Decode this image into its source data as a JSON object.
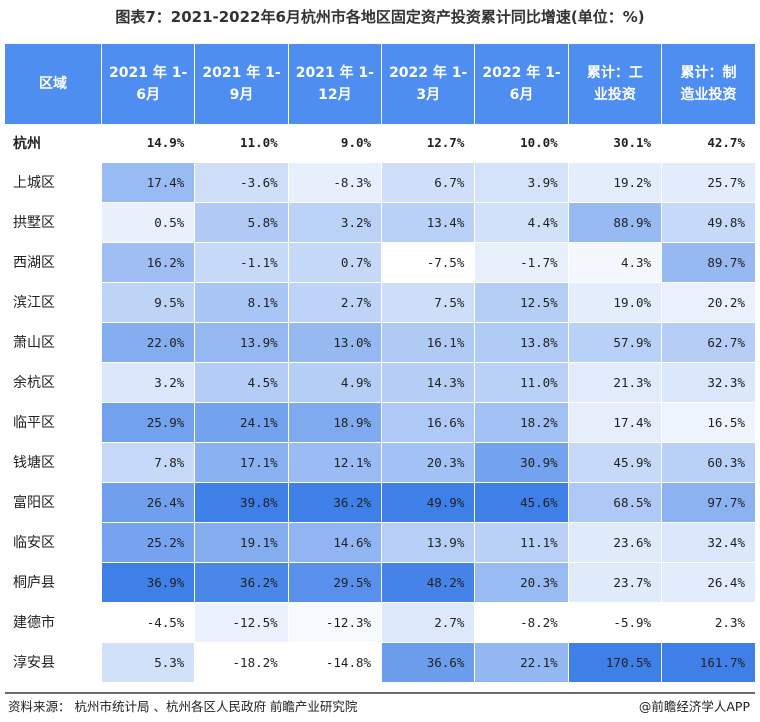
{
  "title": "图表7：2021-2022年6月杭州市各地区固定资产投资累计同比增速(单位：%)",
  "headers": [
    {
      "l1": "区域",
      "l2": ""
    },
    {
      "l1": "2021 年 1-",
      "l2": "6月"
    },
    {
      "l1": "2021 年 1-",
      "l2": "9月"
    },
    {
      "l1": "2021 年 1-",
      "l2": "12月"
    },
    {
      "l1": "2022 年 1-",
      "l2": "3月"
    },
    {
      "l1": "2022 年 1-",
      "l2": "6月"
    },
    {
      "l1": "累计：工",
      "l2": "业投资"
    },
    {
      "l1": "累计：制",
      "l2": "造业投资"
    }
  ],
  "rows": [
    {
      "area": "杭州",
      "v": [
        "14.9%",
        "11.0%",
        "9.0%",
        "12.7%",
        "10.0%",
        "30.1%",
        "42.7%"
      ]
    },
    {
      "area": "上城区",
      "v": [
        "17.4%",
        "-3.6%",
        "-8.3%",
        "6.7%",
        "3.9%",
        "19.2%",
        "25.7%"
      ]
    },
    {
      "area": "拱墅区",
      "v": [
        "0.5%",
        "5.8%",
        "3.2%",
        "13.4%",
        "4.4%",
        "88.9%",
        "49.8%"
      ]
    },
    {
      "area": "西湖区",
      "v": [
        "16.2%",
        "-1.1%",
        "0.7%",
        "-7.5%",
        "-1.7%",
        "4.3%",
        "89.7%"
      ]
    },
    {
      "area": "滨江区",
      "v": [
        "9.5%",
        "8.1%",
        "2.7%",
        "7.5%",
        "12.5%",
        "19.0%",
        "20.2%"
      ]
    },
    {
      "area": "萧山区",
      "v": [
        "22.0%",
        "13.9%",
        "13.0%",
        "16.1%",
        "13.8%",
        "57.9%",
        "62.7%"
      ]
    },
    {
      "area": "余杭区",
      "v": [
        "3.2%",
        "4.5%",
        "4.9%",
        "14.3%",
        "11.0%",
        "21.3%",
        "32.3%"
      ]
    },
    {
      "area": "临平区",
      "v": [
        "25.9%",
        "24.1%",
        "18.9%",
        "16.6%",
        "18.2%",
        "17.4%",
        "16.5%"
      ]
    },
    {
      "area": "钱塘区",
      "v": [
        "7.8%",
        "17.1%",
        "12.1%",
        "20.3%",
        "30.9%",
        "45.9%",
        "60.3%"
      ]
    },
    {
      "area": "富阳区",
      "v": [
        "26.4%",
        "39.8%",
        "36.2%",
        "49.9%",
        "45.6%",
        "68.5%",
        "97.7%"
      ]
    },
    {
      "area": "临安区",
      "v": [
        "25.2%",
        "19.1%",
        "14.6%",
        "13.9%",
        "11.1%",
        "23.6%",
        "32.4%"
      ]
    },
    {
      "area": "桐庐县",
      "v": [
        "36.9%",
        "36.2%",
        "29.5%",
        "48.2%",
        "20.3%",
        "23.7%",
        "26.4%"
      ]
    },
    {
      "area": "建德市",
      "v": [
        "-4.5%",
        "-12.5%",
        "-12.3%",
        "2.7%",
        "-8.2%",
        "-5.9%",
        "2.3%"
      ]
    },
    {
      "area": "淳安县",
      "v": [
        "5.3%",
        "-18.2%",
        "-14.8%",
        "36.6%",
        "22.1%",
        "170.5%",
        "161.7%"
      ]
    }
  ],
  "source": "资料来源：  杭州市统计局 、杭州各区人民政府 前瞻产业研究院",
  "brand": "@前瞻经济学人APP",
  "colors": {
    "header": "#4e8ef0",
    "heat_low": "#ffffff",
    "heat_high": "#3f7fe8",
    "rule": "#6b6b6b"
  }
}
